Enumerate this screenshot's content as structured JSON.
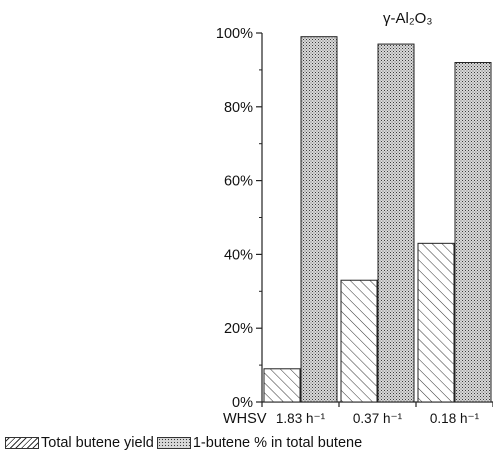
{
  "chart_data": {
    "type": "bar",
    "title": "",
    "annotation": "γ-Al₂O₃",
    "xlabel": "WHSV",
    "ylabel": "",
    "categories": [
      "1.83 h⁻¹",
      "0.37 h⁻¹",
      "0.18 h⁻¹"
    ],
    "series": [
      {
        "name": "Total butene yield",
        "values": [
          9,
          33,
          43
        ],
        "pattern": "hatch"
      },
      {
        "name": "1-butene % in total butene",
        "values": [
          99,
          97,
          92
        ],
        "pattern": "dots"
      }
    ],
    "ylim": [
      0,
      100
    ],
    "yticks": [
      "0%",
      "20%",
      "40%",
      "60%",
      "80%",
      "100%"
    ],
    "ytick_values": [
      0,
      20,
      40,
      60,
      80,
      100
    ],
    "grid": false,
    "legend_position": "bottom"
  }
}
